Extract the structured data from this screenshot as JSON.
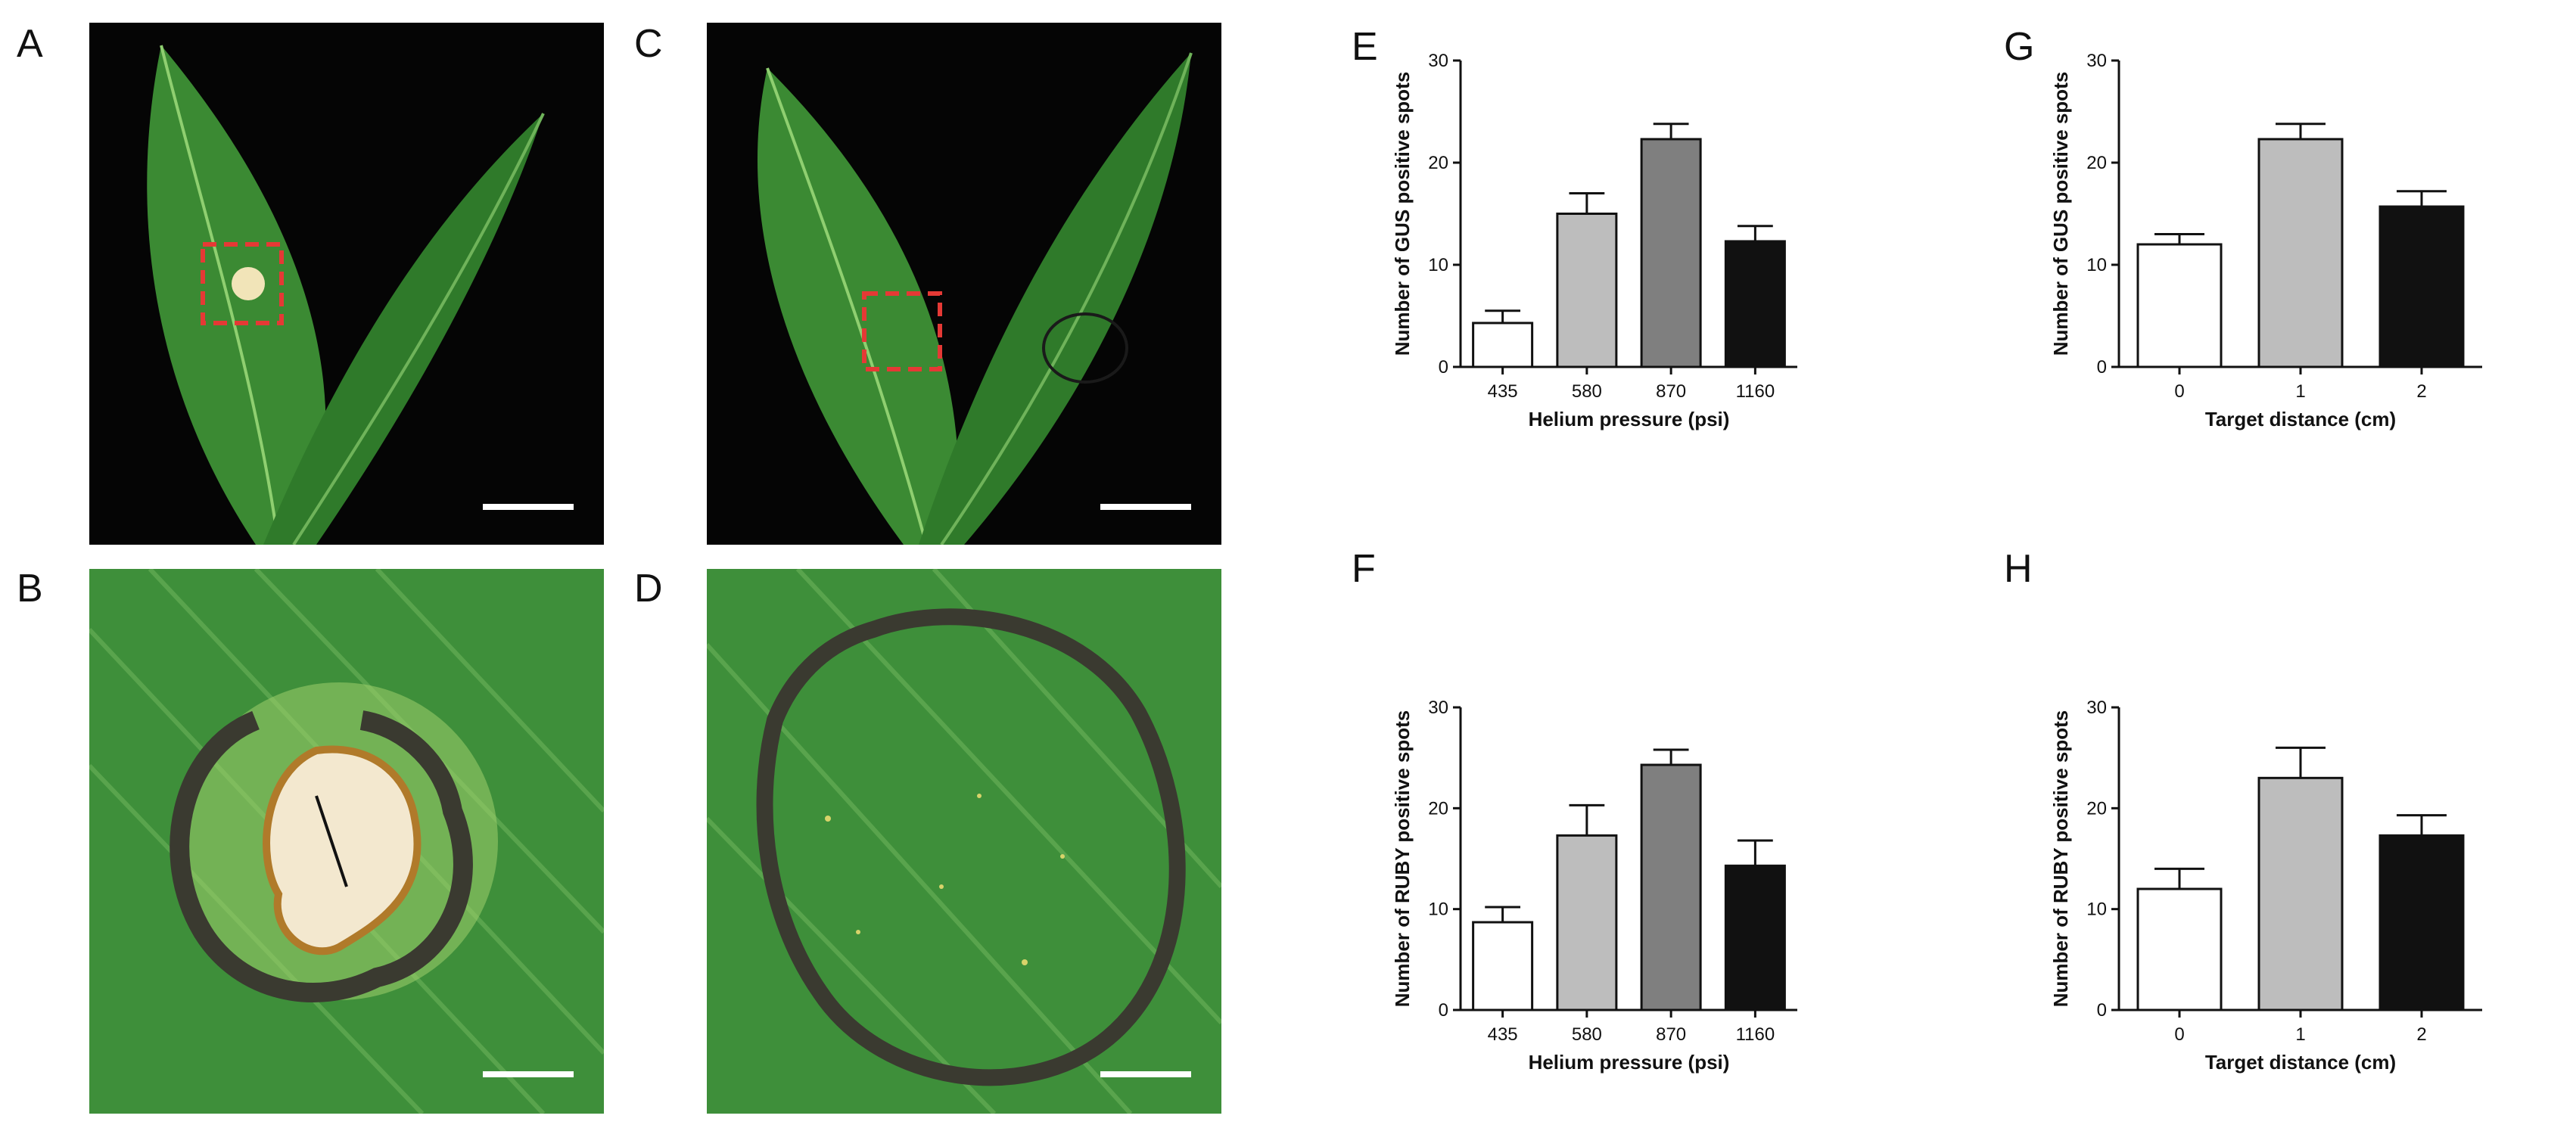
{
  "panel_letters": {
    "A": "A",
    "B": "B",
    "C": "C",
    "D": "D",
    "E": "E",
    "F": "F",
    "G": "G",
    "H": "H"
  },
  "photos": {
    "A": {
      "description_icon": "leaf-with-bombardment-spot-icon"
    },
    "B": {
      "description_icon": "leaf-wound-closeup-icon"
    },
    "C": {
      "description_icon": "leaf-with-marked-circle-icon"
    },
    "D": {
      "description_icon": "leaf-marked-circle-closeup-icon"
    }
  },
  "colors": {
    "bar_white": "#ffffff",
    "bar_light_gray": "#bdbdbd",
    "bar_dark_gray": "#7f7f7f",
    "bar_black": "#111111",
    "leaf_green": "#2f7d32",
    "marker_red": "#e53935"
  },
  "chart_data": [
    {
      "id": "E",
      "type": "bar",
      "categories": [
        "435",
        "580",
        "870",
        "1160"
      ],
      "values": [
        4.3,
        15.0,
        22.3,
        12.3
      ],
      "errors": [
        1.2,
        2.0,
        1.5,
        1.5
      ],
      "bar_colors": [
        "#ffffff",
        "#bdbdbd",
        "#7f7f7f",
        "#111111"
      ],
      "xlabel": "Helium pressure (psi)",
      "ylabel": "Number of GUS positive spots",
      "ylim": [
        0,
        30
      ],
      "yticks": [
        "0",
        "10",
        "20",
        "30"
      ]
    },
    {
      "id": "F",
      "type": "bar",
      "categories": [
        "435",
        "580",
        "870",
        "1160"
      ],
      "values": [
        8.7,
        17.3,
        24.3,
        14.3
      ],
      "errors": [
        1.5,
        3.0,
        1.5,
        2.5
      ],
      "bar_colors": [
        "#ffffff",
        "#bdbdbd",
        "#7f7f7f",
        "#111111"
      ],
      "xlabel": "Helium pressure (psi)",
      "ylabel": "Number of RUBY positive spots",
      "ylim": [
        0,
        30
      ],
      "yticks": [
        "0",
        "10",
        "20",
        "30"
      ]
    },
    {
      "id": "G",
      "type": "bar",
      "categories": [
        "0",
        "1",
        "2"
      ],
      "values": [
        12.0,
        22.3,
        15.7
      ],
      "errors": [
        1.0,
        1.5,
        1.5
      ],
      "bar_colors": [
        "#ffffff",
        "#bdbdbd",
        "#111111"
      ],
      "xlabel": "Target distance (cm)",
      "ylabel": "Number of GUS positive spots",
      "ylim": [
        0,
        30
      ],
      "yticks": [
        "0",
        "10",
        "20",
        "30"
      ]
    },
    {
      "id": "H",
      "type": "bar",
      "categories": [
        "0",
        "1",
        "2"
      ],
      "values": [
        12.0,
        23.0,
        17.3
      ],
      "errors": [
        2.0,
        3.0,
        2.0
      ],
      "bar_colors": [
        "#ffffff",
        "#bdbdbd",
        "#111111"
      ],
      "xlabel": "Target distance (cm)",
      "ylabel": "Number of RUBY positive spots",
      "ylim": [
        0,
        30
      ],
      "yticks": [
        "0",
        "10",
        "20",
        "30"
      ]
    }
  ]
}
